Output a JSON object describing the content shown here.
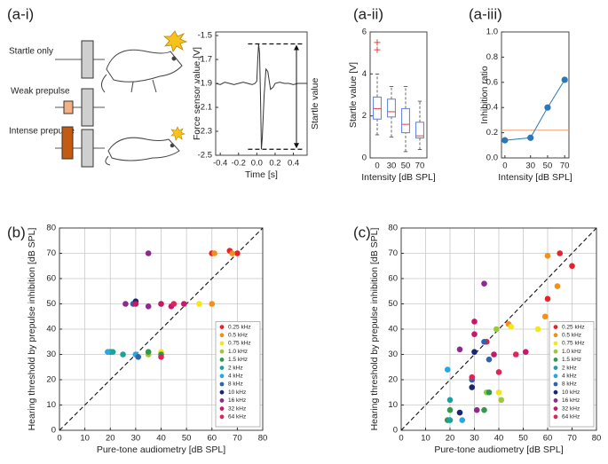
{
  "schematic": {
    "labels": [
      "Startle only",
      "Weak prepulse",
      "Intense prepulse"
    ]
  },
  "chart_data": [
    {
      "type": "line",
      "panel_label": "(a-i)",
      "xlabel": "Time [s]",
      "ylabel": "Force sensor value [V]",
      "annotation": "Startle value",
      "xlim": [
        -0.45,
        0.55
      ],
      "ylim": [
        -2.5,
        -1.47
      ],
      "xticks": [
        -0.4,
        -0.2,
        {
          "value": 0,
          "label": "0.0"
        },
        0.2,
        0.4
      ],
      "yticks": [
        -1.5,
        -1.7,
        -1.9,
        -2.1,
        -2.3,
        -2.5
      ],
      "grid": false,
      "x": [
        -0.45,
        -0.4,
        -0.35,
        -0.3,
        -0.25,
        -0.2,
        -0.15,
        -0.1,
        -0.05,
        -0.02,
        0.0,
        0.01,
        0.02,
        0.03,
        0.04,
        0.05,
        0.06,
        0.08,
        0.1,
        0.12,
        0.15,
        0.18,
        0.2,
        0.25,
        0.3,
        0.35,
        0.4,
        0.45,
        0.5,
        0.55
      ],
      "series": [
        {
          "color": "#333333",
          "values": [
            -1.9,
            -1.91,
            -1.89,
            -1.9,
            -1.91,
            -1.9,
            -1.89,
            -1.9,
            -1.91,
            -1.9,
            -1.88,
            -1.7,
            -1.57,
            -1.65,
            -2.0,
            -2.45,
            -2.35,
            -2.0,
            -1.78,
            -1.8,
            -1.95,
            -1.93,
            -1.9,
            -1.89,
            -1.9,
            -1.9,
            -1.91,
            -1.9,
            -1.9,
            -1.9
          ]
        }
      ]
    },
    {
      "type": "box",
      "panel_label": "(a-ii)",
      "xlabel": "Intensity [dB SPL]",
      "ylabel": "Startle value [V]",
      "ylim": [
        0,
        6
      ],
      "yticks": [
        0,
        2,
        4,
        6
      ],
      "grid": false,
      "categories": [
        "0",
        "30",
        "50",
        "70"
      ],
      "box_color": "#5b7fd6",
      "median_color": "#e0403a",
      "whisker_low": [
        1.1,
        1.0,
        0.3,
        0.4
      ],
      "q1": [
        1.85,
        1.95,
        1.2,
        0.95
      ],
      "median": [
        2.35,
        2.2,
        1.6,
        1.05
      ],
      "q3": [
        2.9,
        2.8,
        2.35,
        1.7
      ],
      "whisker_high": [
        4.0,
        3.4,
        3.4,
        2.7
      ],
      "outliers": [
        [
          5.5,
          5.15
        ],
        [],
        [],
        []
      ]
    },
    {
      "type": "line",
      "panel_label": "(a-iii)",
      "xlabel": "Intensity [dB SPL]",
      "ylabel": "Inhibition ratio",
      "xlim": [
        -4,
        75
      ],
      "ylim": [
        0,
        1.0
      ],
      "xticks": [
        0,
        30,
        50,
        70
      ],
      "yticks": [
        {
          "value": 0,
          "label": "0.0"
        },
        0.2,
        0.4,
        0.6,
        0.8,
        {
          "value": 1,
          "label": "1.0"
        }
      ],
      "grid": false,
      "markers": true,
      "reference_line": {
        "value": 0.22,
        "color": "#f0a070"
      },
      "x": [
        0,
        30,
        50,
        70
      ],
      "series": [
        {
          "color": "#2a78b8",
          "values": [
            0.14,
            0.16,
            0.4,
            0.62
          ]
        }
      ]
    },
    {
      "type": "scatter",
      "panel_label": "(b)",
      "xlabel": "Pure-tone audiometry [dB SPL]",
      "ylabel": "Hearing threshold by prepulse inhibition  [dB SPL]",
      "xlim": [
        0,
        80
      ],
      "ylim": [
        0,
        80
      ],
      "xticks": [
        0,
        10,
        20,
        30,
        40,
        50,
        60,
        70,
        80
      ],
      "yticks": [
        0,
        10,
        20,
        30,
        40,
        50,
        60,
        70,
        80
      ],
      "grid": true,
      "series": [
        {
          "name": "0.25 kHz",
          "color": "#e8202a",
          "x": [
            60,
            67,
            70
          ],
          "values": [
            70,
            71,
            70
          ]
        },
        {
          "name": "0.5 kHz",
          "color": "#f39019",
          "x": [
            61,
            68,
            60
          ],
          "values": [
            70,
            70,
            50
          ]
        },
        {
          "name": "0.75 kHz",
          "color": "#f5e61b",
          "x": [
            40,
            55
          ],
          "values": [
            31,
            50
          ]
        },
        {
          "name": "1.0 kHz",
          "color": "#9cc83b",
          "x": [
            40,
            35
          ],
          "values": [
            50,
            30
          ]
        },
        {
          "name": "1.5 kHz",
          "color": "#2f9a4c",
          "x": [
            20,
            35,
            40
          ],
          "values": [
            31,
            31,
            30
          ]
        },
        {
          "name": "2 kHz",
          "color": "#1aa39a",
          "x": [
            21,
            25
          ],
          "values": [
            31,
            30
          ]
        },
        {
          "name": "4 kHz",
          "color": "#2aa6e0",
          "x": [
            30,
            19
          ],
          "values": [
            30,
            31
          ]
        },
        {
          "name": "8 kHz",
          "color": "#2e63b0",
          "x": [
            31,
            29
          ],
          "values": [
            29,
            50
          ]
        },
        {
          "name": "10 kHz",
          "color": "#1b2670",
          "x": [
            30
          ],
          "values": [
            51
          ]
        },
        {
          "name": "16 kHz",
          "color": "#8e2a8c",
          "x": [
            35,
            26,
            35
          ],
          "values": [
            70,
            50,
            49
          ]
        },
        {
          "name": "32 kHz",
          "color": "#c8186a",
          "x": [
            30,
            40,
            44,
            49
          ],
          "values": [
            50,
            50,
            49,
            50
          ]
        },
        {
          "name": "64 kHz",
          "color": "#e0245a",
          "x": [
            40,
            45
          ],
          "values": [
            29,
            50
          ]
        }
      ]
    },
    {
      "type": "scatter",
      "panel_label": "(c)",
      "xlabel": "Pure-tone audiometry [dB SPL]",
      "ylabel": "Hearing threshold by prepulse inhibition  [dB SPL]",
      "xlim": [
        0,
        80
      ],
      "ylim": [
        0,
        80
      ],
      "xticks": [
        0,
        10,
        20,
        30,
        40,
        50,
        60,
        70,
        80
      ],
      "yticks": [
        0,
        10,
        20,
        30,
        40,
        50,
        60,
        70,
        80
      ],
      "grid": true,
      "series": [
        {
          "name": "0.25 kHz",
          "color": "#e8202a",
          "x": [
            65,
            70,
            60,
            35
          ],
          "values": [
            70,
            65,
            52,
            35
          ]
        },
        {
          "name": "0.5 kHz",
          "color": "#f39019",
          "x": [
            60,
            64,
            59,
            44
          ],
          "values": [
            69,
            57,
            45,
            42
          ]
        },
        {
          "name": "0.75 kHz",
          "color": "#f5e61b",
          "x": [
            40,
            56,
            45
          ],
          "values": [
            15,
            40,
            41
          ]
        },
        {
          "name": "1.0 kHz",
          "color": "#9cc83b",
          "x": [
            39,
            41,
            35
          ],
          "values": [
            40,
            12,
            15
          ]
        },
        {
          "name": "1.5 kHz",
          "color": "#2f9a4c",
          "x": [
            36,
            34,
            20,
            19
          ],
          "values": [
            15,
            8,
            8,
            4
          ]
        },
        {
          "name": "2 kHz",
          "color": "#1aa39a",
          "x": [
            20,
            20
          ],
          "values": [
            4,
            12
          ]
        },
        {
          "name": "4 kHz",
          "color": "#2aa6e0",
          "x": [
            19,
            25
          ],
          "values": [
            24,
            4
          ]
        },
        {
          "name": "8 kHz",
          "color": "#2e63b0",
          "x": [
            34,
            36,
            29
          ],
          "values": [
            35,
            28,
            20
          ]
        },
        {
          "name": "10 kHz",
          "color": "#1b2670",
          "x": [
            30,
            29,
            24
          ],
          "values": [
            31,
            17,
            7
          ]
        },
        {
          "name": "16 kHz",
          "color": "#8e2a8c",
          "x": [
            34,
            24,
            31
          ],
          "values": [
            58,
            32,
            8
          ]
        },
        {
          "name": "32 kHz",
          "color": "#c8186a",
          "x": [
            30,
            30,
            38,
            51
          ],
          "values": [
            43,
            38,
            30,
            31
          ]
        },
        {
          "name": "64 kHz",
          "color": "#e0245a",
          "x": [
            29,
            40,
            47
          ],
          "values": [
            21,
            23,
            30
          ]
        }
      ]
    }
  ]
}
